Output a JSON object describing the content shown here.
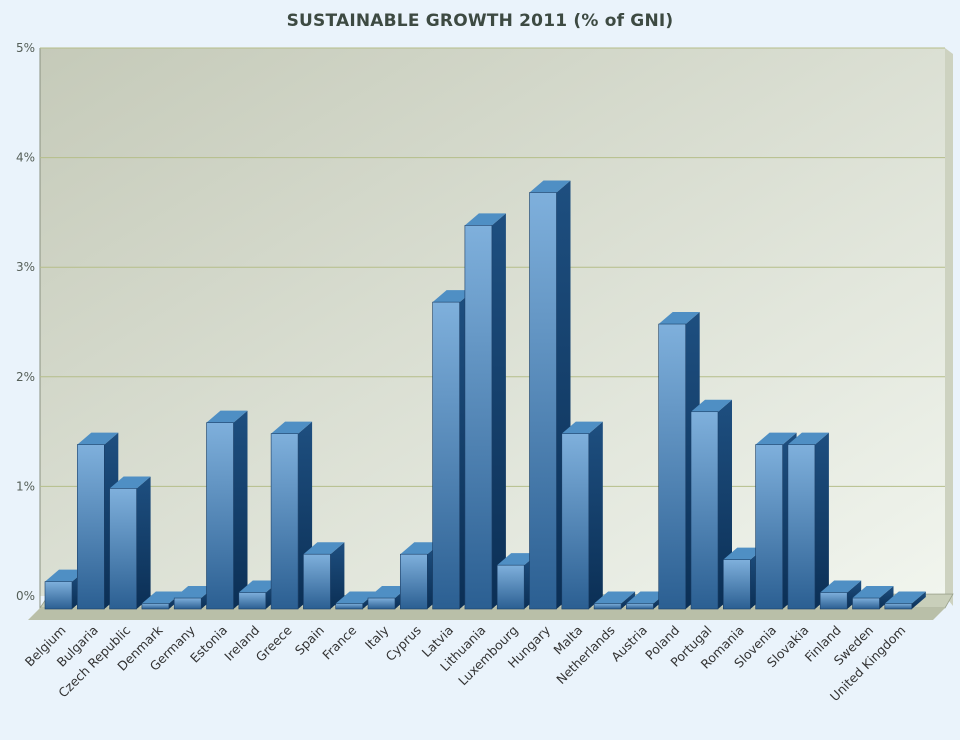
{
  "chart_data": {
    "type": "bar",
    "title": "SUSTAINABLE GROWTH 2011 (% of GNI)",
    "xlabel": "",
    "ylabel": "",
    "ylim": [
      0,
      5
    ],
    "yticks": [
      "0%",
      "1%",
      "2%",
      "3%",
      "4%",
      "5%"
    ],
    "grid": true,
    "categories": [
      "Belgium",
      "Bulgaria",
      "Czech Republic",
      "Denmark",
      "Germany",
      "Estonia",
      "Ireland",
      "Greece",
      "Spain",
      "France",
      "Italy",
      "Cyprus",
      "Latvia",
      "Lithuania",
      "Luxembourg",
      "Hungary",
      "Malta",
      "Netherlands",
      "Austria",
      "Poland",
      "Portugal",
      "Romania",
      "Slovenia",
      "Slovakia",
      "Finland",
      "Sweden",
      "United Kingdom"
    ],
    "values": [
      0.25,
      1.5,
      1.1,
      0.05,
      0.1,
      1.7,
      0.15,
      1.6,
      0.5,
      0.05,
      0.1,
      0.5,
      2.8,
      3.5,
      0.4,
      3.8,
      1.6,
      0.05,
      0.05,
      2.6,
      1.8,
      0.45,
      1.5,
      1.5,
      0.15,
      0.1,
      0.05
    ],
    "colors": {
      "bar_front_light": "#7fb0dc",
      "bar_front_dark": "#2b5f92",
      "bar_side": "#0f3a66",
      "bar_top": "#4f8fc4",
      "plot_bg_top": "#c9cebf",
      "plot_bg_bottom": "#eef3ea",
      "gridline": "#b5be8a"
    }
  }
}
